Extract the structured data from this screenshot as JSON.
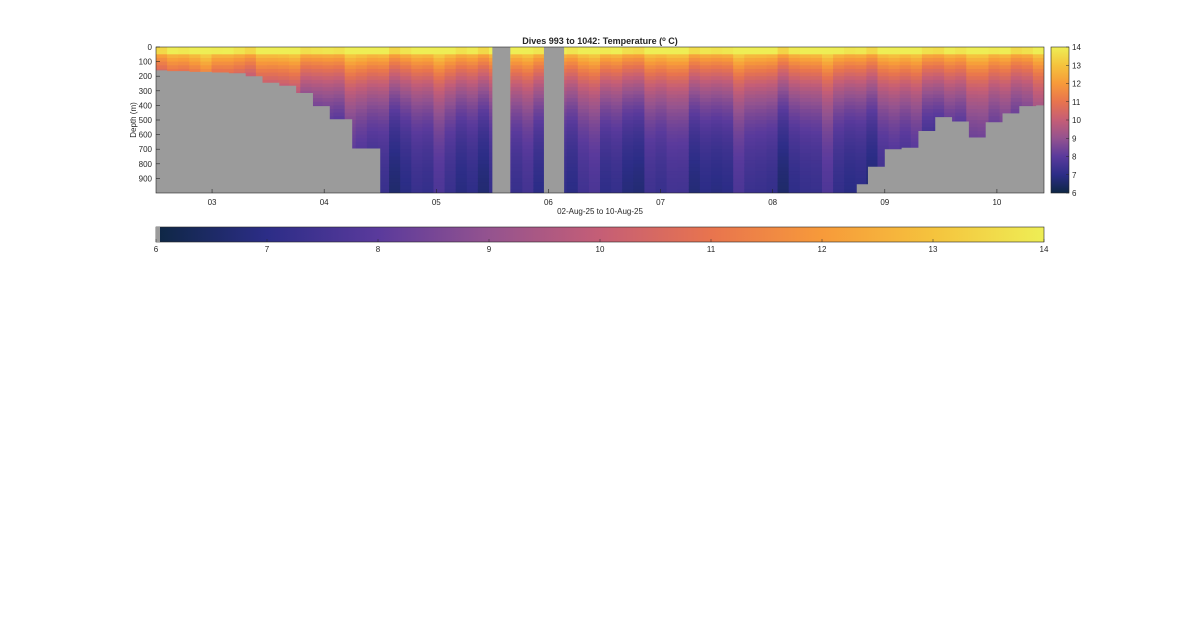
{
  "chart_data": {
    "type": "heatmap",
    "title": "Dives 993 to 1042: Temperature (",
    "title_superscript": "o",
    "title_suffix": " C)",
    "xlabel": "02-Aug-25 to 10-Aug-25",
    "ylabel": "Depth (m)",
    "x_tick_labels": [
      "03",
      "04",
      "05",
      "06",
      "07",
      "08",
      "09",
      "10"
    ],
    "x_tick_values": [
      3,
      4,
      5,
      6,
      7,
      8,
      9,
      10
    ],
    "xlim": [
      2.5,
      10.42
    ],
    "y_tick_labels": [
      "0",
      "100",
      "200",
      "300",
      "400",
      "500",
      "600",
      "700",
      "800",
      "900"
    ],
    "y_tick_values": [
      0,
      100,
      200,
      300,
      400,
      500,
      600,
      700,
      800,
      900
    ],
    "ylim": [
      0,
      1000
    ],
    "y_reversed": true,
    "colorbar_tick_labels": [
      "6",
      "7",
      "8",
      "9",
      "10",
      "11",
      "12",
      "13",
      "14"
    ],
    "color_range": [
      6,
      14
    ],
    "no_data_color": "#9b9b9b",
    "colormap": [
      "#0e2744",
      "#2c2d87",
      "#5a3a9c",
      "#94538f",
      "#c55e76",
      "#e8744e",
      "#f79a3a",
      "#f5c33d",
      "#eeee55"
    ],
    "bottom_depth_profile": {
      "x": [
        2.5,
        2.6,
        2.8,
        3.0,
        3.15,
        3.3,
        3.45,
        3.6,
        3.75,
        3.9,
        4.05,
        4.25,
        4.5,
        8.6,
        8.75,
        8.85,
        9.0,
        9.15,
        9.3,
        9.45,
        9.6,
        9.75,
        9.9,
        10.05,
        10.2,
        10.35,
        10.42
      ],
      "depth": [
        160,
        165,
        170,
        175,
        180,
        200,
        245,
        265,
        315,
        405,
        495,
        695,
        1000,
        1000,
        940,
        820,
        700,
        690,
        575,
        480,
        510,
        620,
        515,
        455,
        405,
        400,
        400
      ]
    },
    "gaps": [
      [
        5.5,
        5.66
      ],
      [
        5.96,
        6.14
      ]
    ]
  }
}
